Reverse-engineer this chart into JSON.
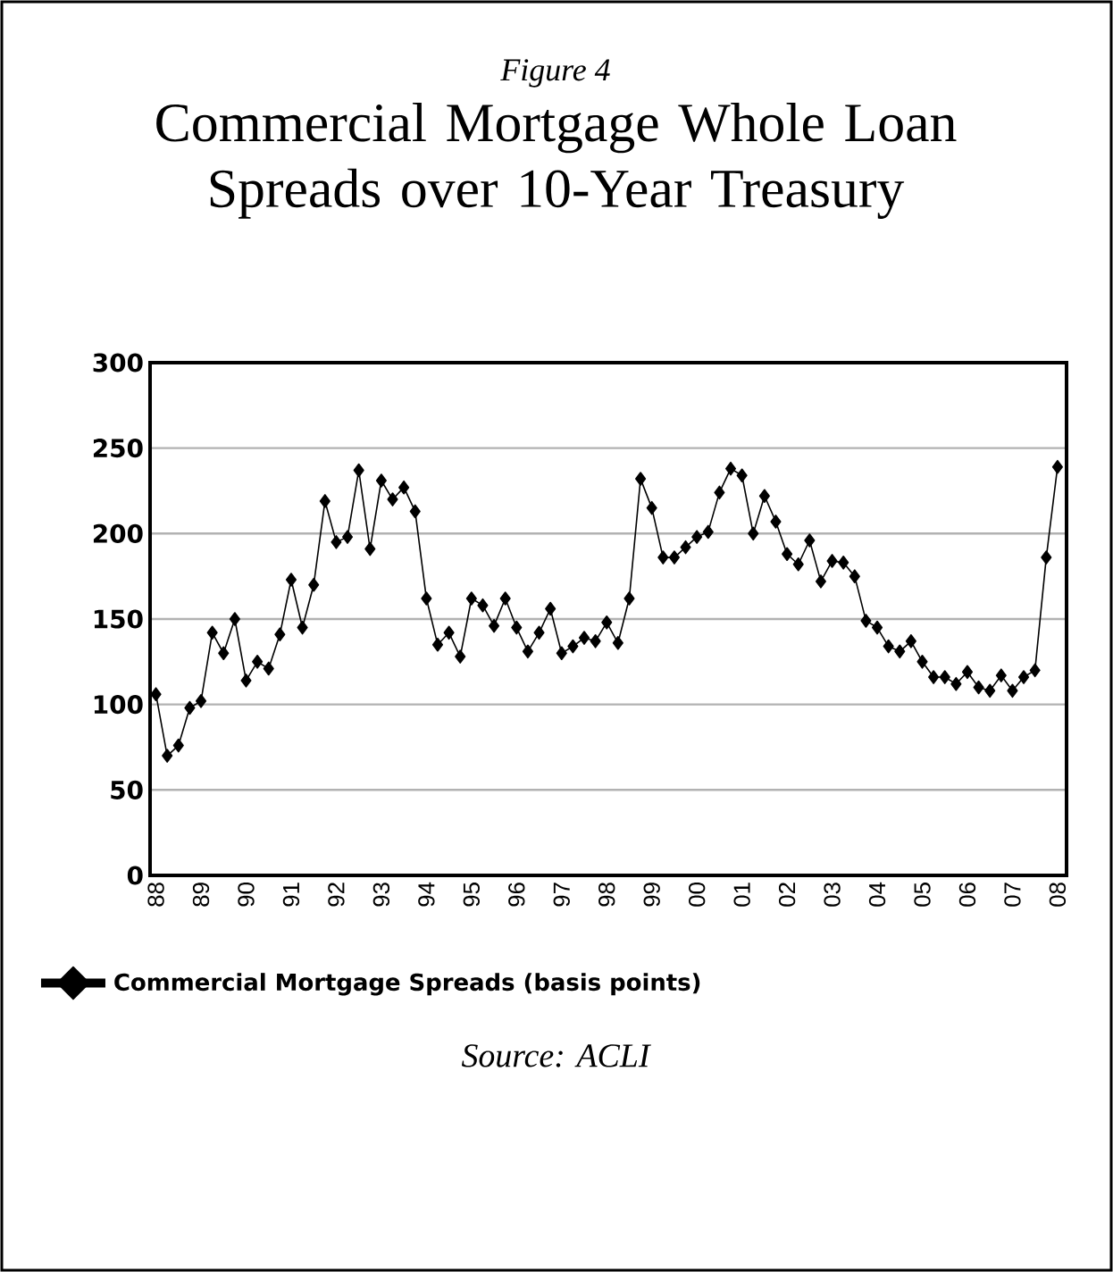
{
  "chart_data": {
    "type": "line",
    "subtitle": "Figure 4",
    "title": "Commercial Mortgage Whole Loan Spreads over 10-Year Treasury",
    "annotations": [
      "Source: ACLI"
    ],
    "x": [
      1988,
      1988.25,
      1988.5,
      1988.75,
      1989,
      1989.25,
      1989.5,
      1989.75,
      1990,
      1990.25,
      1990.5,
      1990.75,
      1991,
      1991.25,
      1991.5,
      1991.75,
      1992,
      1992.25,
      1992.5,
      1992.75,
      1993,
      1993.25,
      1993.5,
      1993.75,
      1994,
      1994.25,
      1994.5,
      1994.75,
      1995,
      1995.25,
      1995.5,
      1995.75,
      1996,
      1996.25,
      1996.5,
      1996.75,
      1997,
      1997.25,
      1997.5,
      1997.75,
      1998,
      1998.25,
      1998.5,
      1998.75,
      1999,
      1999.25,
      1999.5,
      1999.75,
      2000,
      2000.25,
      2000.5,
      2000.75,
      2001,
      2001.25,
      2001.5,
      2001.75,
      2002,
      2002.25,
      2002.5,
      2002.75,
      2003,
      2003.25,
      2003.5,
      2003.75,
      2004,
      2004.25,
      2004.5,
      2004.75,
      2005,
      2005.25,
      2005.5,
      2005.75,
      2006,
      2006.25,
      2006.5,
      2006.75,
      2007,
      2007.25,
      2007.5,
      2007.75,
      2008
    ],
    "series": [
      {
        "name": "Commercial Mortgage Spreads (basis points)",
        "color": "#000000",
        "values": [
          106,
          70,
          76,
          98,
          102,
          142,
          130,
          150,
          114,
          125,
          121,
          141,
          173,
          145,
          170,
          219,
          195,
          198,
          237,
          191,
          231,
          220,
          227,
          213,
          162,
          135,
          142,
          128,
          162,
          158,
          146,
          162,
          145,
          131,
          142,
          156,
          130,
          134,
          139,
          137,
          148,
          136,
          162,
          232,
          215,
          186,
          186,
          192,
          198,
          201,
          224,
          238,
          234,
          200,
          222,
          207,
          188,
          182,
          196,
          172,
          184,
          183,
          175,
          149,
          145,
          134,
          131,
          137,
          125,
          116,
          116,
          112,
          119,
          110,
          108,
          117,
          108,
          116,
          120,
          186,
          239
        ]
      }
    ],
    "xlim": [
      1987.87,
      2008.2
    ],
    "ylim": [
      0,
      300
    ],
    "xticks": [
      {
        "value": 1988,
        "label": "88"
      },
      {
        "value": 1989,
        "label": "89"
      },
      {
        "value": 1990,
        "label": "90"
      },
      {
        "value": 1991,
        "label": "91"
      },
      {
        "value": 1992,
        "label": "92"
      },
      {
        "value": 1993,
        "label": "93"
      },
      {
        "value": 1994,
        "label": "94"
      },
      {
        "value": 1995,
        "label": "95"
      },
      {
        "value": 1996,
        "label": "96"
      },
      {
        "value": 1997,
        "label": "97"
      },
      {
        "value": 1998,
        "label": "98"
      },
      {
        "value": 1999,
        "label": "99"
      },
      {
        "value": 2000,
        "label": "00"
      },
      {
        "value": 2001,
        "label": "01"
      },
      {
        "value": 2002,
        "label": "02"
      },
      {
        "value": 2003,
        "label": "03"
      },
      {
        "value": 2004,
        "label": "04"
      },
      {
        "value": 2005,
        "label": "05"
      },
      {
        "value": 2006,
        "label": "06"
      },
      {
        "value": 2007,
        "label": "07"
      },
      {
        "value": 2008,
        "label": "08"
      }
    ],
    "yticks": [
      0,
      50,
      100,
      150,
      200,
      250,
      300
    ],
    "grid": "y",
    "legend": "bottom left",
    "marker": "diamond",
    "line_style": "solid"
  }
}
